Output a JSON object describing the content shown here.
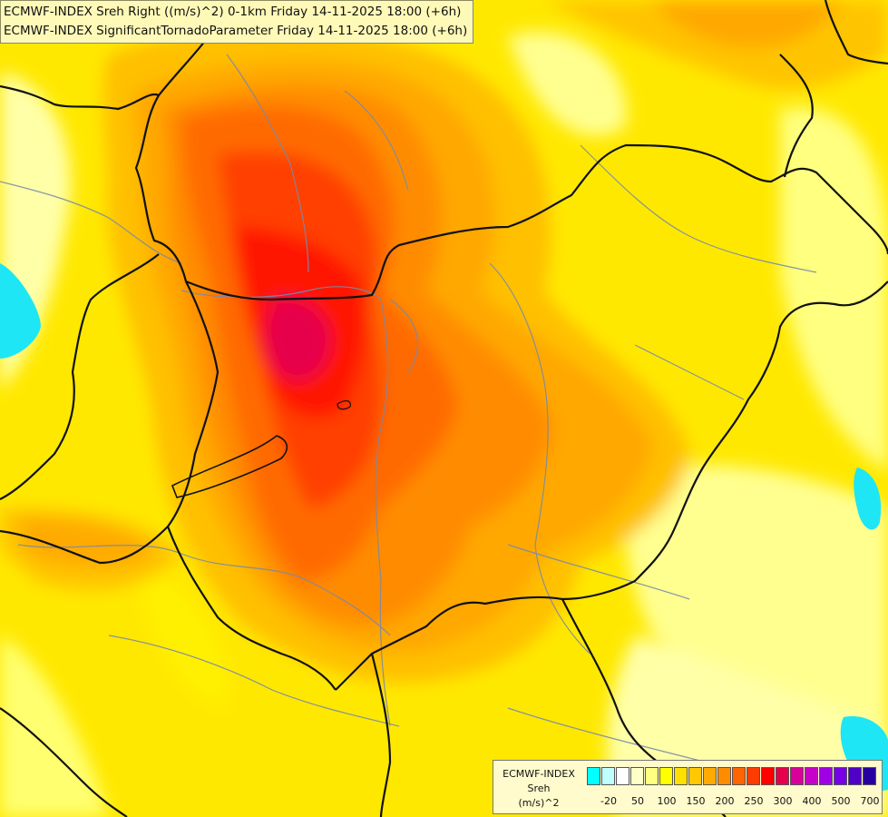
{
  "titles": {
    "line1": "ECMWF-INDEX Sreh Right ((m/s)^2) 0-1km Friday 14-11-2025 18:00 (+6h)",
    "line2": "ECMWF-INDEX SignificantTornadoParameter Friday 14-11-2025 18:00 (+6h)"
  },
  "legend": {
    "line1": "ECMWF-INDEX",
    "line2": "Sreh",
    "line3": "(m/s)^2",
    "colors": [
      "#00ffff",
      "#bfffff",
      "#ffffff",
      "#ffffc8",
      "#ffff80",
      "#ffff00",
      "#ffe000",
      "#ffc800",
      "#ffaa00",
      "#ff8c00",
      "#ff6400",
      "#ff3c00",
      "#ff0000",
      "#e6004c",
      "#d90099",
      "#c800cc",
      "#a000e6",
      "#7800e6",
      "#5000c8",
      "#2800a0"
    ],
    "ticks": [
      "-20",
      "50",
      "100",
      "150",
      "200",
      "250",
      "300",
      "400",
      "500",
      "700"
    ]
  }
}
